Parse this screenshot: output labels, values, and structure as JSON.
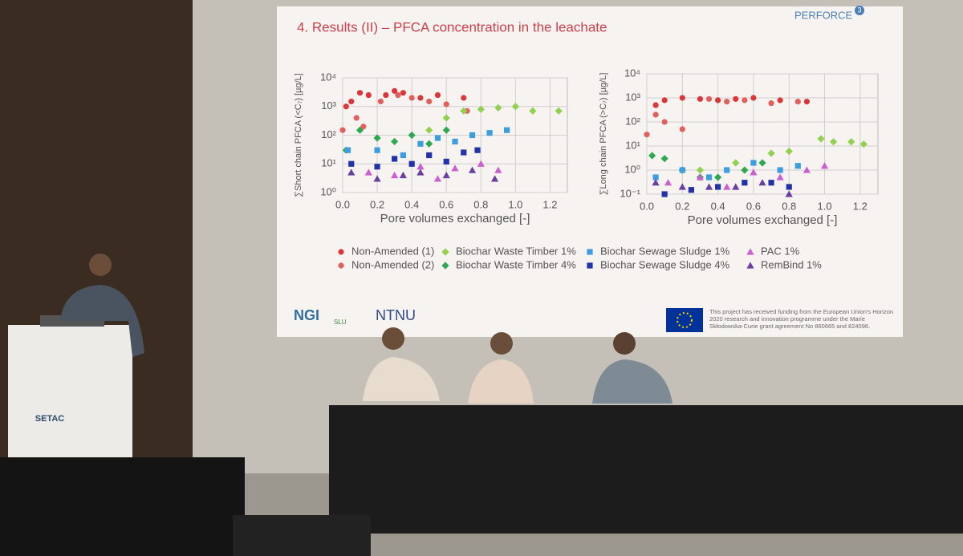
{
  "slide": {
    "title": "4. Results (II) – PFCA concentration in the leachate",
    "logo": "PERFORCE",
    "logo_badge": "3",
    "partner_logos": [
      "NGI",
      "SLU",
      "NTNU"
    ],
    "funding": "This project has received funding from the European Union's Horizon 2020 research and innovation programme under the Marie Skłodowska-Curie grant agreement No 860665 and 824096."
  },
  "legend": [
    {
      "name": "Non-Amended (1)",
      "color": "#d9383a",
      "marker": "circle"
    },
    {
      "name": "Non-Amended (2)",
      "color": "#e0605c",
      "marker": "circle"
    },
    {
      "name": "Biochar Waste Timber 1%",
      "color": "#92d050",
      "marker": "diamond"
    },
    {
      "name": "Biochar Waste Timber 4%",
      "color": "#2fa84f",
      "marker": "diamond"
    },
    {
      "name": "Biochar Sewage Sludge 1%",
      "color": "#3c9ee0",
      "marker": "square"
    },
    {
      "name": "Biochar Sewage Sludge 4%",
      "color": "#2233aa",
      "marker": "square"
    },
    {
      "name": "PAC 1%",
      "color": "#cc5fd0",
      "marker": "triangle"
    },
    {
      "name": "RemBind 1%",
      "color": "#6b3fa0",
      "marker": "triangle"
    }
  ],
  "chart_data": [
    {
      "type": "scatter",
      "y_label": "∑Short chain PFCA (<C₇) [µg/L]",
      "x_label": "Pore volumes exchanged [-]",
      "xlim": [
        0,
        1.3
      ],
      "xticks": [
        {
          "value": 0,
          "label": "0.0"
        },
        0.2,
        0.4,
        0.6,
        0.8,
        {
          "value": 1,
          "label": "1.0"
        },
        1.2
      ],
      "ylim": [
        1,
        10000
      ],
      "log_y": true,
      "grid": true,
      "yticks": [
        {
          "value": 1,
          "label": "10⁰"
        },
        {
          "value": 10,
          "label": "10¹"
        },
        {
          "value": 100,
          "label": "10²"
        },
        {
          "value": 1000,
          "label": "10³"
        },
        {
          "value": 10000,
          "label": "10⁴"
        }
      ],
      "series": [
        {
          "x": [
            0.02,
            0.05,
            0.1,
            0.15,
            0.25,
            0.3,
            0.35,
            0.45,
            0.55,
            0.7
          ],
          "values": [
            1000,
            1500,
            3000,
            2500,
            2500,
            3500,
            3000,
            2000,
            2500,
            2000
          ]
        },
        {
          "x": [
            0.0,
            0.08,
            0.12,
            0.22,
            0.32,
            0.4,
            0.5,
            0.6,
            0.72
          ],
          "values": [
            150,
            400,
            200,
            1500,
            2500,
            2000,
            1500,
            1200,
            700
          ]
        },
        {
          "x": [
            0.5,
            0.6,
            0.7,
            0.8,
            0.9,
            1.0,
            1.1,
            1.25
          ],
          "values": [
            150,
            400,
            700,
            800,
            900,
            1000,
            700,
            700
          ]
        },
        {
          "x": [
            0.02,
            0.1,
            0.2,
            0.3,
            0.4,
            0.5,
            0.6
          ],
          "values": [
            30,
            150,
            80,
            60,
            100,
            50,
            150
          ]
        },
        {
          "x": [
            0.03,
            0.2,
            0.35,
            0.45,
            0.55,
            0.65,
            0.75,
            0.85,
            0.95
          ],
          "values": [
            30,
            30,
            20,
            50,
            80,
            60,
            100,
            120,
            150
          ]
        },
        {
          "x": [
            0.05,
            0.2,
            0.3,
            0.4,
            0.5,
            0.6,
            0.7,
            0.78
          ],
          "values": [
            10,
            8,
            15,
            10,
            20,
            12,
            25,
            30
          ]
        },
        {
          "x": [
            0.15,
            0.3,
            0.45,
            0.55,
            0.65,
            0.8,
            0.9
          ],
          "values": [
            5,
            4,
            8,
            3,
            7,
            10,
            6
          ]
        },
        {
          "x": [
            0.05,
            0.2,
            0.35,
            0.45,
            0.6,
            0.75,
            0.88
          ],
          "values": [
            5,
            3,
            4,
            5,
            4,
            6,
            3
          ]
        }
      ]
    },
    {
      "type": "scatter",
      "y_label": "∑Long chain PFCA (>C₇) [µg/L]",
      "x_label": "Pore volumes exchanged [-]",
      "xlim": [
        0,
        1.3
      ],
      "xticks": [
        {
          "value": 0,
          "label": "0.0"
        },
        0.2,
        0.4,
        0.6,
        0.8,
        {
          "value": 1,
          "label": "1.0"
        },
        1.2
      ],
      "ylim": [
        0.1,
        10000
      ],
      "log_y": true,
      "grid": true,
      "yticks": [
        {
          "value": 0.1,
          "label": "10⁻¹"
        },
        {
          "value": 1,
          "label": "10⁰"
        },
        {
          "value": 10,
          "label": "10¹"
        },
        {
          "value": 100,
          "label": "10²"
        },
        {
          "value": 1000,
          "label": "10³"
        },
        {
          "value": 10000,
          "label": "10⁴"
        }
      ],
      "series": [
        {
          "x": [
            0.05,
            0.1,
            0.2,
            0.3,
            0.4,
            0.5,
            0.6,
            0.75,
            0.9
          ],
          "values": [
            500,
            800,
            1000,
            900,
            800,
            900,
            1000,
            800,
            700
          ]
        },
        {
          "x": [
            0.0,
            0.05,
            0.1,
            0.2,
            0.35,
            0.45,
            0.55,
            0.7,
            0.85
          ],
          "values": [
            30,
            200,
            100,
            50,
            900,
            700,
            800,
            600,
            700
          ]
        },
        {
          "x": [
            0.3,
            0.5,
            0.7,
            0.8,
            0.98,
            1.05,
            1.15,
            1.22
          ],
          "values": [
            1,
            2,
            5,
            6,
            20,
            15,
            15,
            12
          ]
        },
        {
          "x": [
            0.03,
            0.1,
            0.2,
            0.3,
            0.4,
            0.55,
            0.65
          ],
          "values": [
            4,
            3,
            1,
            0.5,
            0.5,
            1,
            2
          ]
        },
        {
          "x": [
            0.05,
            0.2,
            0.35,
            0.45,
            0.6,
            0.75,
            0.85
          ],
          "values": [
            0.5,
            1,
            0.5,
            1,
            2,
            1,
            1.5
          ]
        },
        {
          "x": [
            0.1,
            0.25,
            0.4,
            0.55,
            0.7,
            0.8
          ],
          "values": [
            0.1,
            0.15,
            0.2,
            0.3,
            0.3,
            0.2
          ]
        },
        {
          "x": [
            0.12,
            0.3,
            0.45,
            0.6,
            0.75,
            0.9,
            1.0
          ],
          "values": [
            0.3,
            0.5,
            0.2,
            0.8,
            0.5,
            1,
            1.5
          ]
        },
        {
          "x": [
            0.05,
            0.2,
            0.35,
            0.5,
            0.65,
            0.8
          ],
          "values": [
            0.3,
            0.2,
            0.2,
            0.2,
            0.3,
            0.1
          ]
        }
      ]
    }
  ],
  "podium": {
    "label": "SETAC"
  }
}
